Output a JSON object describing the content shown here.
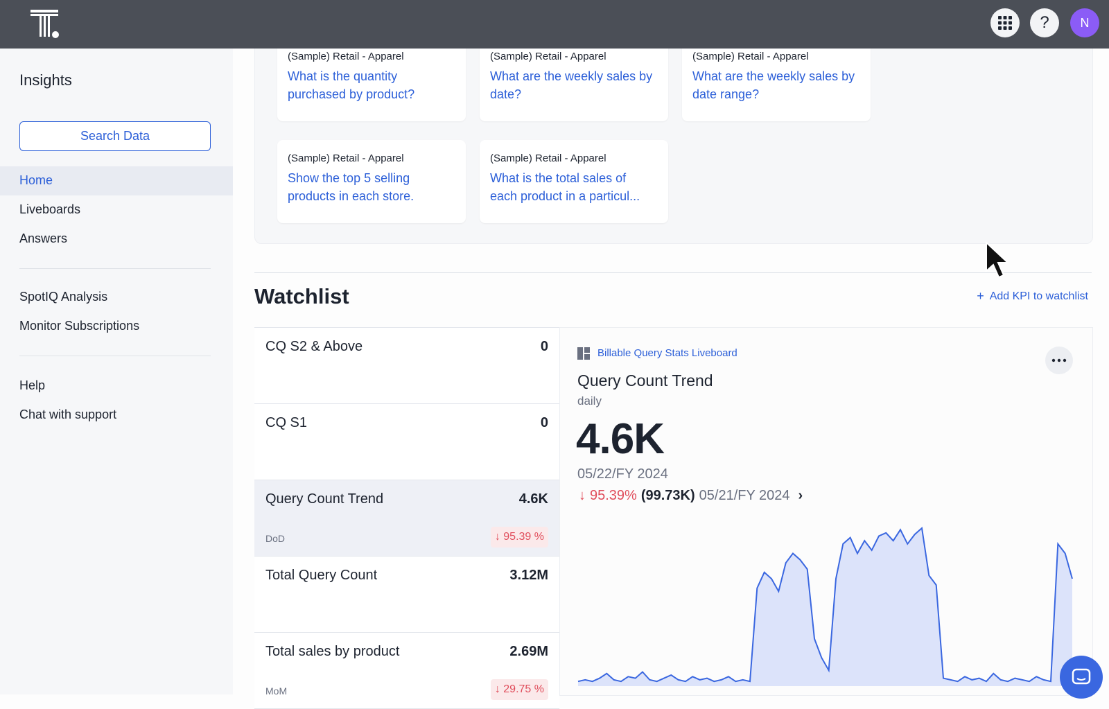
{
  "header": {
    "help_icon": "?",
    "avatar_initial": "N"
  },
  "sidebar": {
    "title": "Insights",
    "search_button": "Search Data",
    "nav_main": [
      "Home",
      "Liveboards",
      "Answers"
    ],
    "nav_analysis": [
      "SpotIQ Analysis",
      "Monitor Subscriptions"
    ],
    "nav_support": [
      "Help",
      "Chat with support"
    ]
  },
  "suggestions": [
    {
      "source": "(Sample) Retail - Apparel",
      "question": "What is the quantity purchased by product?"
    },
    {
      "source": "(Sample) Retail - Apparel",
      "question": "What are the weekly sales by date?"
    },
    {
      "source": "(Sample) Retail - Apparel",
      "question": "What are the weekly sales by date range?"
    },
    {
      "source": "(Sample) Retail - Apparel",
      "question": "Show the top 5 selling products in each store."
    },
    {
      "source": "(Sample) Retail - Apparel",
      "question": "What is the total sales of each product in a particul..."
    }
  ],
  "watchlist": {
    "title": "Watchlist",
    "add_kpi": "Add KPI to watchlist",
    "items": [
      {
        "name": "CQ S2 & Above",
        "value": "0"
      },
      {
        "name": "CQ S1",
        "value": "0"
      },
      {
        "name": "Query Count Trend",
        "value": "4.6K",
        "comparison": "DoD",
        "change": "95.39 %"
      },
      {
        "name": "Total Query Count",
        "value": "3.12M"
      },
      {
        "name": "Total sales by product",
        "value": "2.69M",
        "comparison": "MoM",
        "change": "29.75 %"
      }
    ]
  },
  "kpi_detail": {
    "source": "Billable Query Stats Liveboard",
    "title": "Query Count Trend",
    "period": "daily",
    "value": "4.6K",
    "date": "05/22/FY 2024",
    "change": "95.39%",
    "previous_value": "(99.73K)",
    "previous_date": "05/21/FY 2024",
    "sparkline": [
      3,
      4,
      3,
      5,
      8,
      4,
      3,
      6,
      5,
      9,
      4,
      3,
      5,
      7,
      4,
      3,
      6,
      4,
      5,
      3,
      4,
      6,
      3,
      4,
      3,
      62,
      72,
      68,
      60,
      78,
      84,
      80,
      74,
      30,
      18,
      10,
      68,
      90,
      94,
      84,
      92,
      86,
      95,
      97,
      92,
      99,
      90,
      96,
      100,
      70,
      64,
      5,
      4,
      3,
      6,
      4,
      5,
      3,
      8,
      4,
      3,
      5,
      4,
      3,
      6,
      4,
      3,
      90,
      84,
      68
    ]
  }
}
